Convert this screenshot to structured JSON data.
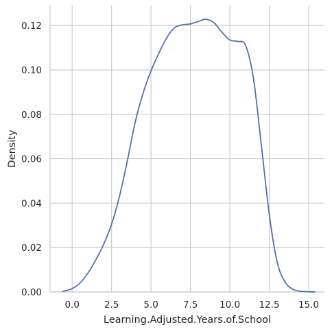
{
  "chart_data": {
    "type": "line",
    "title": "",
    "xlabel": "Learning.Adjusted.Years.of.School",
    "ylabel": "Density",
    "xlim": [
      -1.4,
      16.0
    ],
    "ylim": [
      0.0,
      0.129
    ],
    "x_ticks": [
      0.0,
      2.5,
      5.0,
      7.5,
      10.0,
      12.5,
      15.0
    ],
    "x_tick_labels": [
      "0.0",
      "2.5",
      "5.0",
      "7.5",
      "10.0",
      "12.5",
      "15.0"
    ],
    "y_ticks": [
      0.0,
      0.02,
      0.04,
      0.06,
      0.08,
      0.1,
      0.12
    ],
    "y_tick_labels": [
      "0.00",
      "0.02",
      "0.04",
      "0.06",
      "0.08",
      "0.10",
      "0.12"
    ],
    "grid": true,
    "legend": "none",
    "series": [
      {
        "color": "#4c72b0",
        "x": [
          -0.6,
          0.0,
          0.5,
          1.0,
          1.5,
          2.0,
          2.5,
          3.0,
          3.5,
          4.0,
          4.5,
          5.0,
          5.5,
          6.0,
          6.5,
          7.0,
          7.5,
          8.0,
          8.5,
          9.0,
          9.5,
          10.0,
          10.5,
          11.0,
          11.5,
          12.0,
          12.5,
          13.0,
          13.5,
          14.0,
          14.5,
          15.0,
          15.4
        ],
        "y": [
          0.0002,
          0.0015,
          0.004,
          0.0085,
          0.0145,
          0.0215,
          0.0305,
          0.043,
          0.059,
          0.0765,
          0.0895,
          0.0995,
          0.1075,
          0.1145,
          0.119,
          0.1203,
          0.1207,
          0.1218,
          0.1228,
          0.1212,
          0.117,
          0.1135,
          0.1128,
          0.111,
          0.096,
          0.066,
          0.035,
          0.0135,
          0.0045,
          0.0012,
          0.0003,
          0.0001,
          0.0
        ]
      }
    ]
  }
}
